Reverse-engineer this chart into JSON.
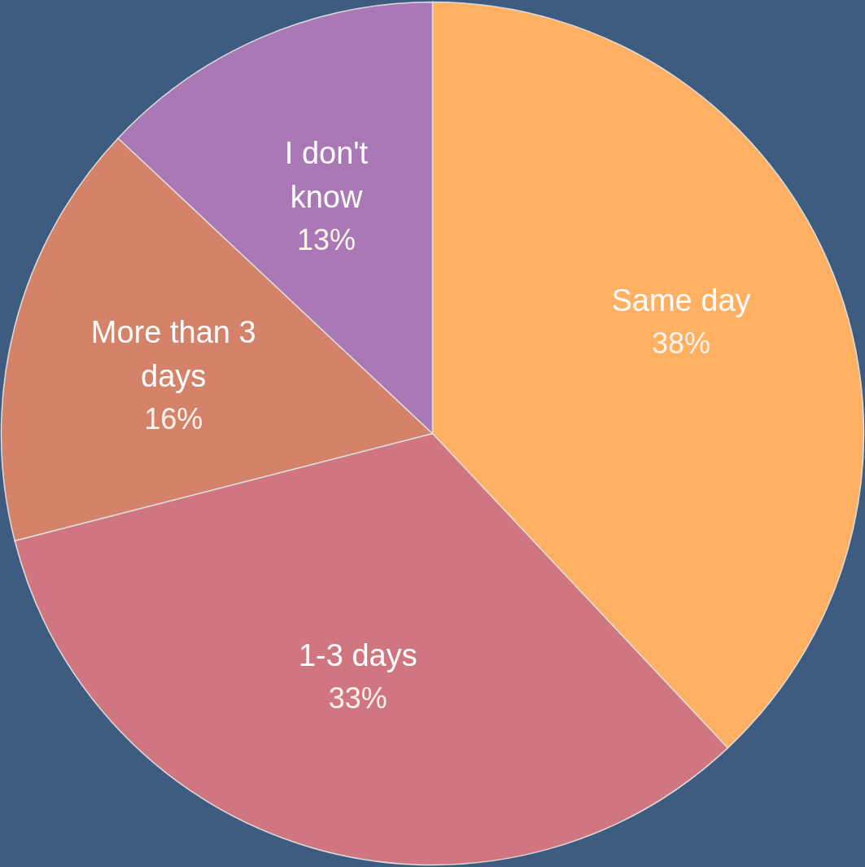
{
  "chart_data": {
    "type": "pie",
    "categories": [
      "Same day",
      "1-3 days",
      "More than 3 days",
      "I don't know"
    ],
    "values": [
      38,
      33,
      16,
      13
    ],
    "value_labels": [
      "38%",
      "33%",
      "16%",
      "13%"
    ],
    "colors": [
      "#ffb062",
      "#d07680",
      "#d4836a",
      "#a978b5"
    ]
  }
}
